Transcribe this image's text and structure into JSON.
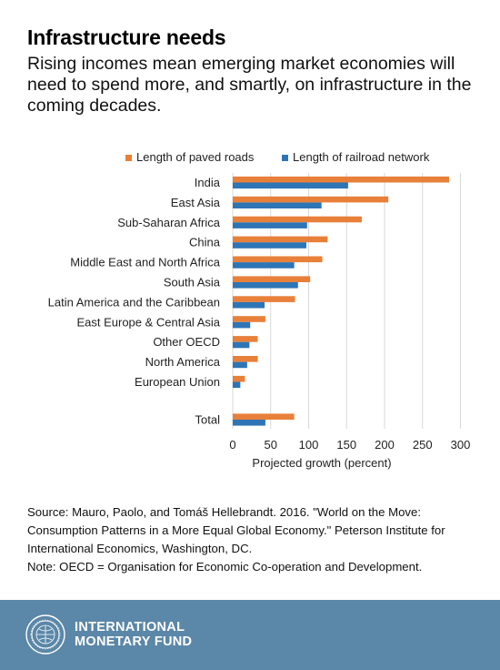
{
  "header": {
    "title": "Infrastructure needs",
    "subtitle": "Rising incomes mean emerging market economies will need to spend more, and smartly, on infrastructure in the coming decades."
  },
  "chart_data": {
    "type": "bar",
    "orientation": "horizontal",
    "categories": [
      "India",
      "East Asia",
      "Sub-Saharan Africa",
      "China",
      "Middle East and North Africa",
      "South Asia",
      "Latin America and the Caribbean",
      "East Europe & Central Asia",
      "Other OECD",
      "North America",
      "European Union",
      "Total"
    ],
    "series": [
      {
        "name": "Length of paved roads",
        "color": "#e8803a",
        "values": [
          285,
          205,
          170,
          125,
          118,
          102,
          82,
          43,
          33,
          33,
          16,
          81
        ]
      },
      {
        "name": "Length of railroad network",
        "color": "#2e75b6",
        "values": [
          152,
          117,
          98,
          97,
          81,
          86,
          42,
          23,
          22,
          19,
          10,
          43
        ]
      }
    ],
    "xlabel": "Projected growth (percent)",
    "xticks": [
      0,
      50,
      100,
      150,
      200,
      250,
      300
    ],
    "xlim": [
      0,
      300
    ],
    "grid": true,
    "legend_position": "top"
  },
  "source": {
    "text": "Source: Mauro, Paolo, and Tomáš Hellebrandt. 2016. \"World on the Move: Consumption Patterns in a More Equal Global Economy.\" Peterson Institute for International Economics, Washington, DC.",
    "note": "Note: OECD = Organisation for Economic Co-operation and Development."
  },
  "footer": {
    "org_line1": "INTERNATIONAL",
    "org_line2": "MONETARY FUND",
    "seal_icon": "imf-seal-icon"
  }
}
